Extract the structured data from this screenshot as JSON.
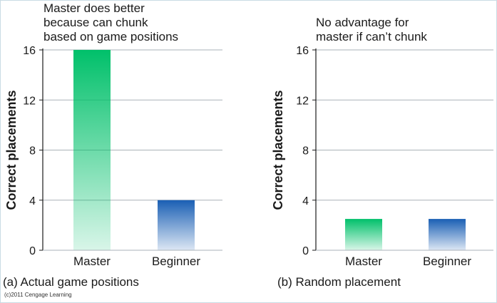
{
  "chart_data": [
    {
      "type": "bar",
      "categories": [
        "Master",
        "Beginner"
      ],
      "values": [
        16,
        4
      ],
      "ylabel": "Correct placements",
      "ylim": [
        0,
        16
      ],
      "yticks": [
        "0",
        "4",
        "8",
        "12",
        "16"
      ],
      "annotation": "Master does better\nbecause can chunk\nbased on game positions",
      "caption": "(a) Actual game positions",
      "grid": true,
      "bar_colors": [
        "#00c06a",
        "#1a5fb4"
      ]
    },
    {
      "type": "bar",
      "categories": [
        "Master",
        "Beginner"
      ],
      "values": [
        2.5,
        2.5
      ],
      "ylabel": "Correct placements",
      "ylim": [
        0,
        16
      ],
      "yticks": [
        "0",
        "4",
        "8",
        "12",
        "16"
      ],
      "annotation": "No advantage for\nmaster if can’t chunk",
      "caption": "(b) Random placement",
      "grid": true,
      "bar_colors": [
        "#00c06a",
        "#1a5fb4"
      ]
    }
  ],
  "copyright": "(c)2011 Cengage Learning"
}
